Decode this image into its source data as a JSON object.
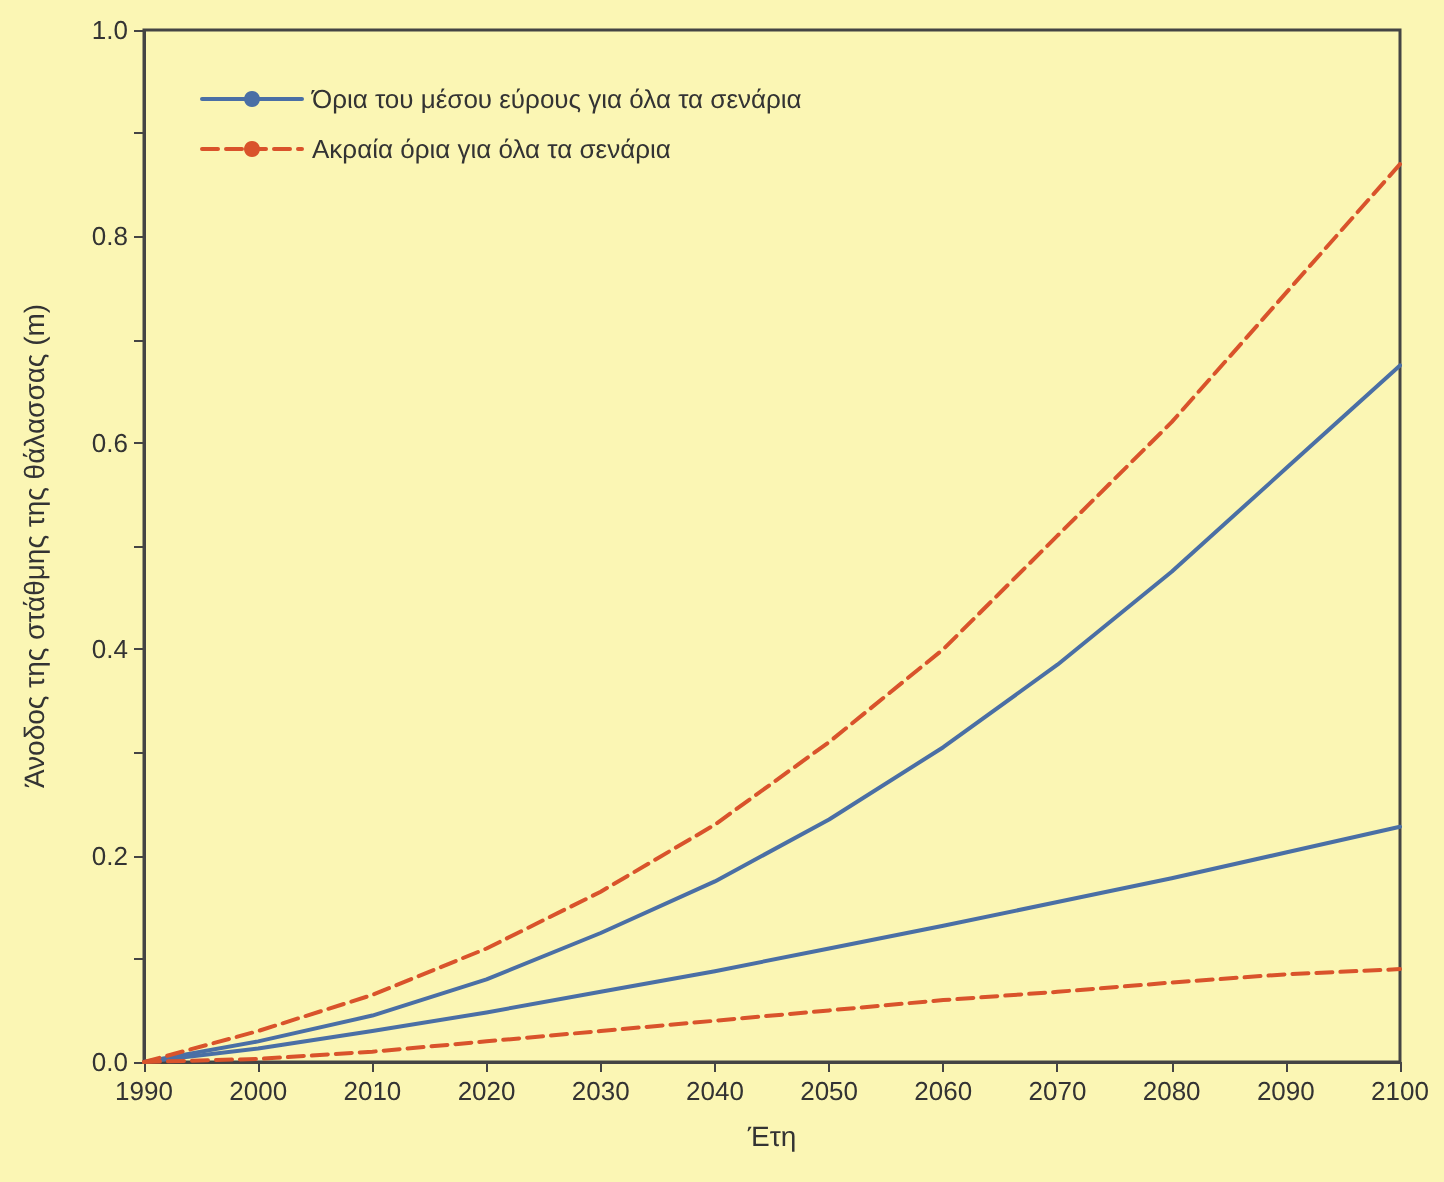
{
  "chart_data": {
    "type": "line",
    "xlabel": "Έτη",
    "ylabel": "Άνοδος της στάθμης της θάλασσας (m)",
    "x": [
      1990,
      2000,
      2010,
      2020,
      2030,
      2040,
      2050,
      2060,
      2070,
      2080,
      2090,
      2100
    ],
    "series": [
      {
        "name": "Όρια του μέσου εύρους για όλα τα σενάρια",
        "color": "#4a6fa5",
        "line_style": "solid",
        "values": [
          0,
          0.02,
          0.045,
          0.08,
          0.125,
          0.175,
          0.235,
          0.305,
          0.385,
          0.475,
          0.575,
          0.675
        ]
      },
      {
        "color": "#4a6fa5",
        "line_style": "solid",
        "values": [
          0,
          0.013,
          0.03,
          0.048,
          0.068,
          0.088,
          0.11,
          0.132,
          0.155,
          0.178,
          0.203,
          0.228
        ]
      },
      {
        "name": "Ακραία όρια για όλα τα σενάρια",
        "color": "#d9532b",
        "line_style": "dashed",
        "values": [
          0,
          0.03,
          0.065,
          0.11,
          0.165,
          0.23,
          0.31,
          0.4,
          0.51,
          0.62,
          0.745,
          0.87
        ]
      },
      {
        "color": "#d9532b",
        "line_style": "dashed",
        "values": [
          0,
          0.003,
          0.01,
          0.02,
          0.03,
          0.04,
          0.05,
          0.06,
          0.068,
          0.077,
          0.085,
          0.09
        ]
      }
    ],
    "xlim": [
      1990,
      2100
    ],
    "xticks": [
      1990,
      2000,
      2010,
      2020,
      2030,
      2040,
      2050,
      2060,
      2070,
      2080,
      2090,
      2100
    ],
    "ylim": [
      0,
      1.0
    ],
    "yticks": [
      {
        "value": 0,
        "label": "0.0"
      },
      {
        "value": 0.1,
        "label": null
      },
      0.2,
      {
        "value": 0.3,
        "label": null
      },
      0.4,
      {
        "value": 0.5,
        "label": null
      },
      0.6,
      {
        "value": 0.7,
        "label": null
      },
      0.8,
      {
        "value": 0.9,
        "label": null
      },
      {
        "value": 1.0,
        "label": "1.0"
      }
    ],
    "grid": false,
    "legend": "top left",
    "marker": "none"
  }
}
